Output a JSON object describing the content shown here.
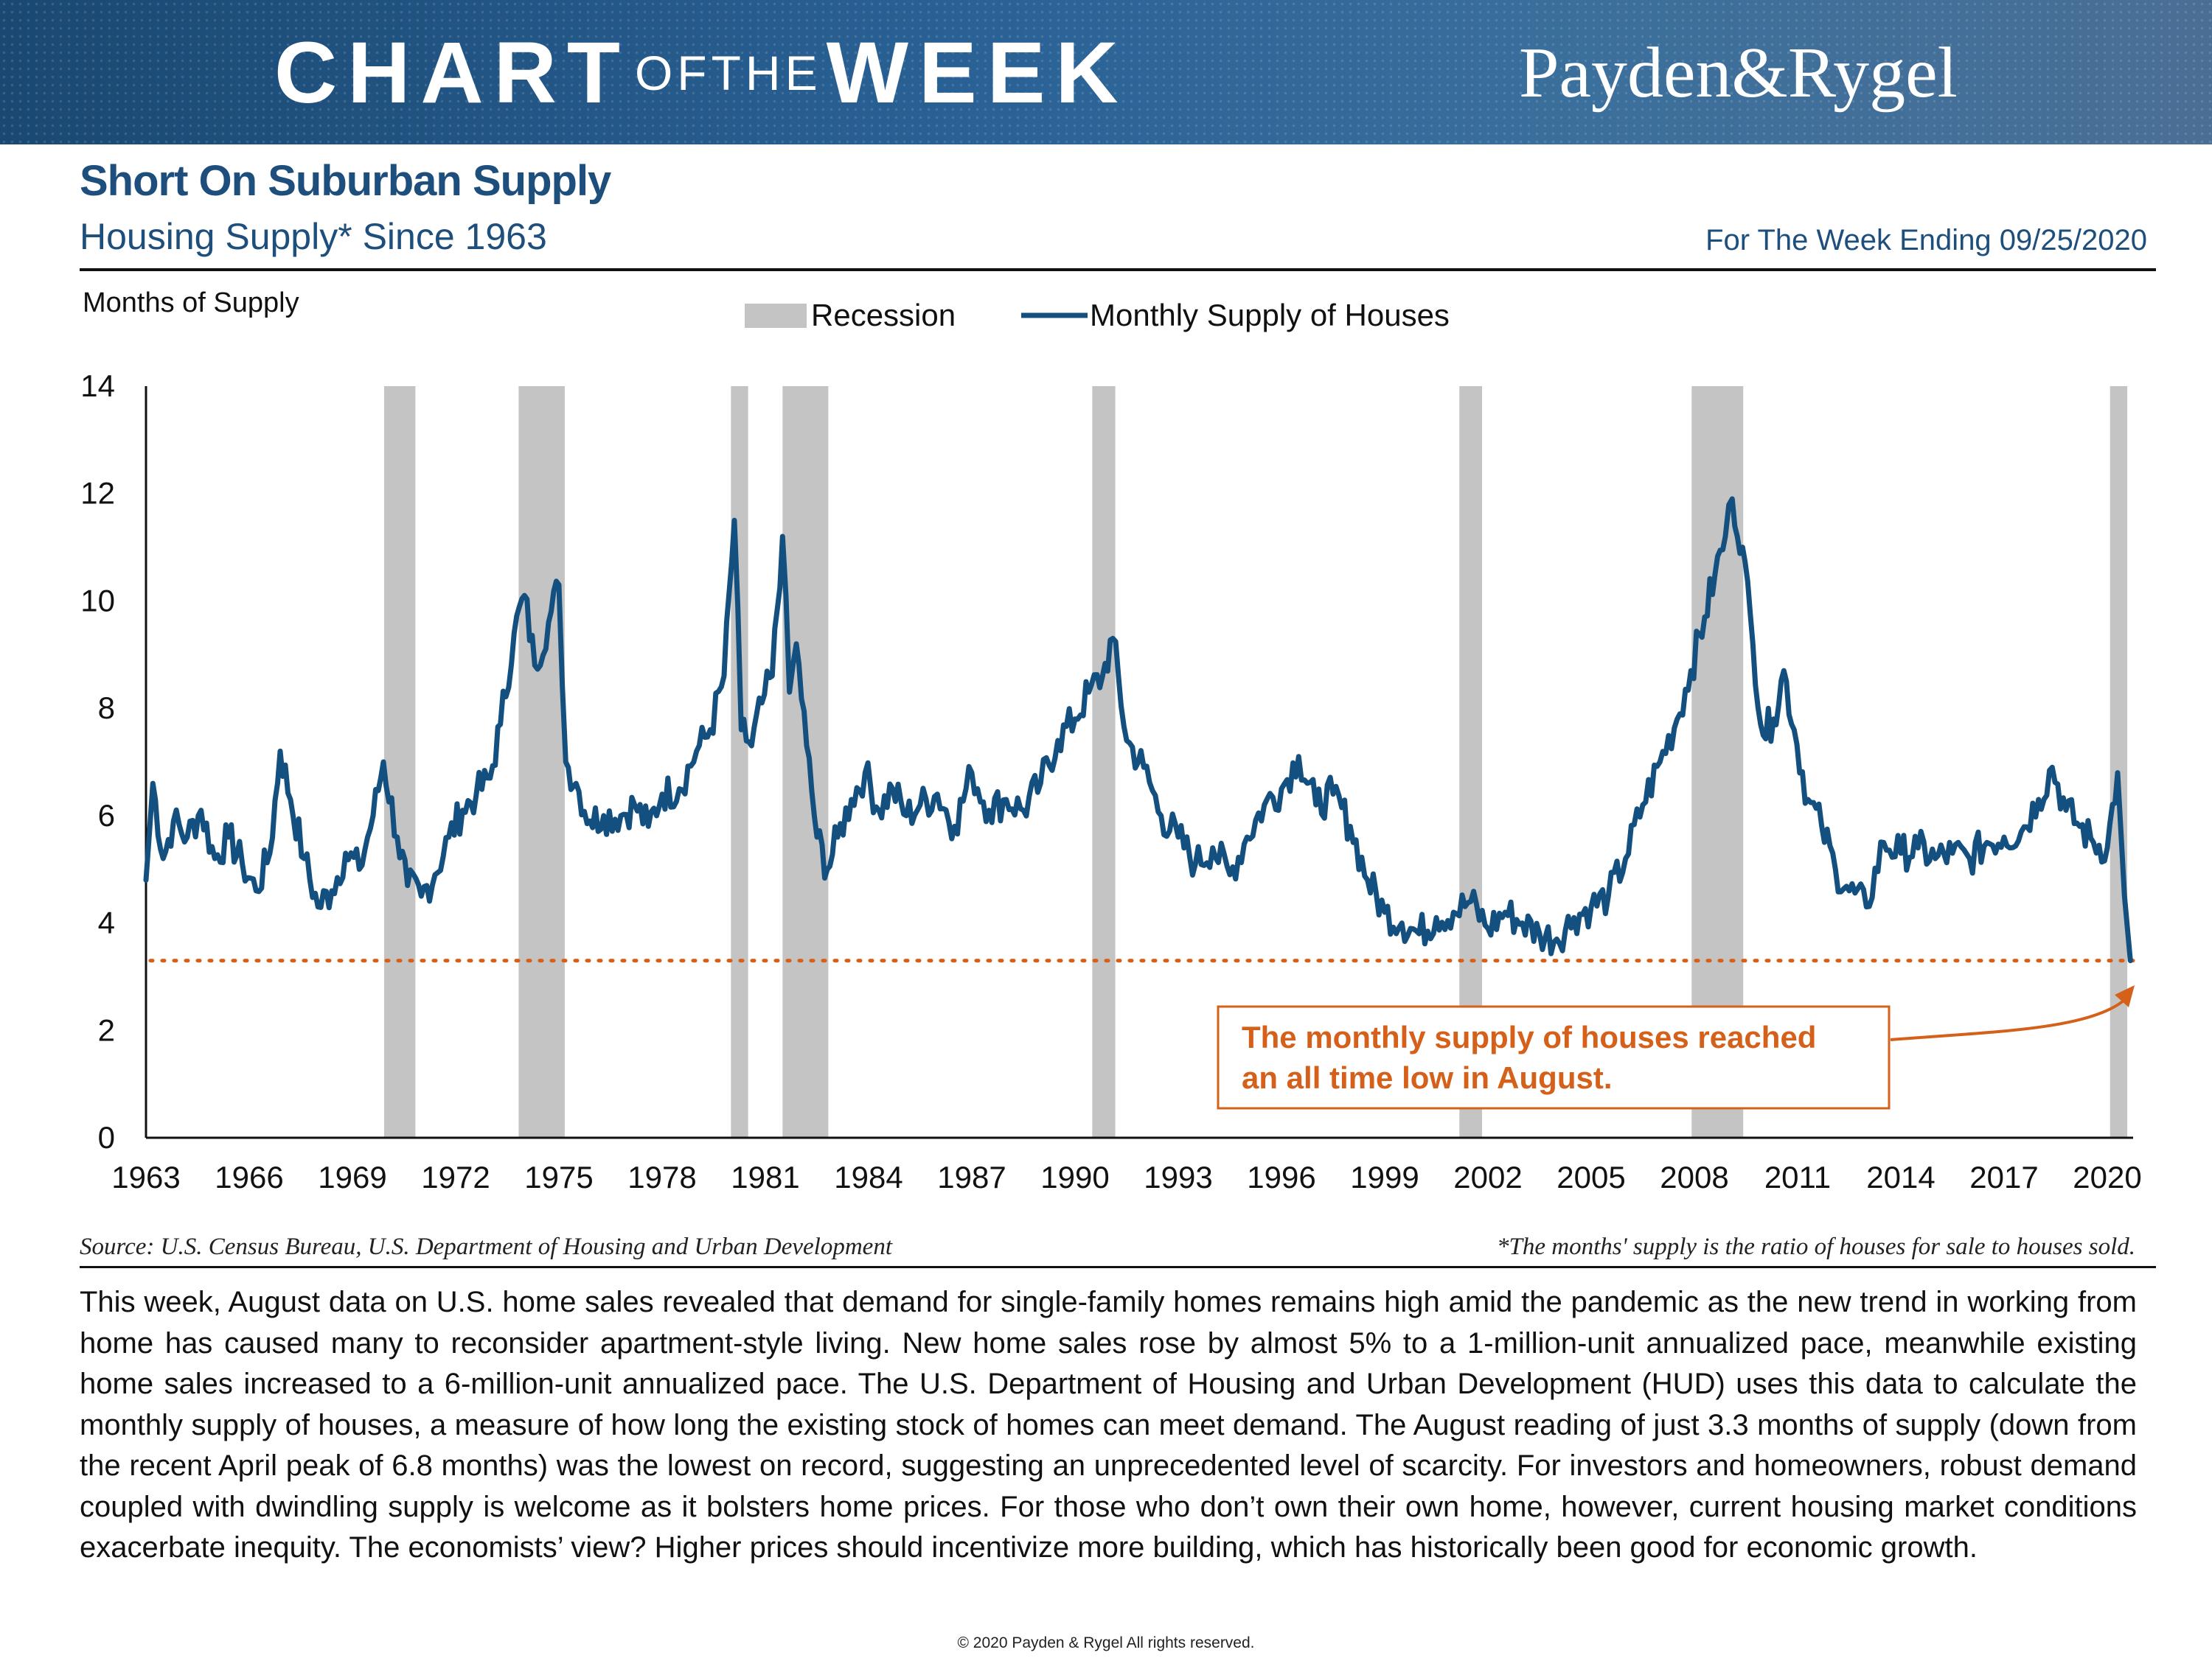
{
  "banner": {
    "brand_chart": "CHART",
    "brand_ofthe": "OFTHE",
    "brand_week": "WEEK",
    "logo": "Payden&Rygel"
  },
  "header": {
    "title": "Short On Suburban Supply",
    "subtitle": "Housing Supply* Since 1963",
    "week_ending": "For The Week Ending 09/25/2020"
  },
  "colors": {
    "series": "#14507f",
    "recession": "#c4c4c4",
    "annotation": "#d4601a",
    "brand": "#1e4f7c"
  },
  "chart_data": {
    "type": "line",
    "title": "Short On Suburban Supply",
    "subtitle": "Housing Supply* Since 1963",
    "ylabel": "Months of Supply",
    "xlabel": "",
    "ylim": [
      0,
      14
    ],
    "yticks": [
      0,
      2,
      4,
      6,
      8,
      10,
      12,
      14
    ],
    "xlim": [
      1963,
      2020.75
    ],
    "xticks": [
      "1963",
      "1966",
      "1969",
      "1972",
      "1975",
      "1978",
      "1981",
      "1984",
      "1987",
      "1990",
      "1993",
      "1996",
      "1999",
      "2002",
      "2005",
      "2008",
      "2011",
      "2014",
      "2017",
      "2020"
    ],
    "legend": [
      "Recession",
      "Monthly Supply of Houses"
    ],
    "legend_position": "top-center",
    "recessions": [
      {
        "start": 1969.92,
        "end": 1970.83
      },
      {
        "start": 1973.83,
        "end": 1975.17
      },
      {
        "start": 1980.0,
        "end": 1980.5
      },
      {
        "start": 1981.5,
        "end": 1982.83
      },
      {
        "start": 1990.5,
        "end": 1991.17
      },
      {
        "start": 2001.17,
        "end": 2001.83
      },
      {
        "start": 2007.92,
        "end": 2009.42
      },
      {
        "start": 2020.08,
        "end": 2020.58
      }
    ],
    "series": [
      {
        "name": "Monthly Supply of Houses",
        "x": [
          1963.0,
          1963.2,
          1963.5,
          1963.8,
          1964.2,
          1964.6,
          1965.0,
          1965.4,
          1965.8,
          1966.2,
          1966.6,
          1966.9,
          1967.2,
          1967.6,
          1968.0,
          1968.4,
          1968.8,
          1969.2,
          1969.6,
          1969.9,
          1970.3,
          1970.6,
          1971.0,
          1971.4,
          1971.8,
          1972.2,
          1972.6,
          1973.0,
          1973.3,
          1973.7,
          1974.0,
          1974.3,
          1974.7,
          1975.0,
          1975.2,
          1975.5,
          1975.9,
          1976.3,
          1976.8,
          1977.2,
          1977.6,
          1978.0,
          1978.5,
          1979.0,
          1979.4,
          1979.8,
          1980.1,
          1980.3,
          1980.6,
          1980.9,
          1981.2,
          1981.5,
          1981.7,
          1981.9,
          1982.2,
          1982.5,
          1982.8,
          1983.1,
          1983.5,
          1983.9,
          1984.3,
          1984.7,
          1985.1,
          1985.5,
          1986.0,
          1986.5,
          1987.0,
          1987.5,
          1988.0,
          1988.5,
          1989.0,
          1989.5,
          1990.0,
          1990.4,
          1990.8,
          1991.1,
          1991.5,
          1992.0,
          1992.5,
          1993.0,
          1993.5,
          1994.0,
          1994.5,
          1995.0,
          1995.5,
          1996.0,
          1996.5,
          1997.0,
          1997.5,
          1998.0,
          1998.5,
          1999.0,
          1999.5,
          2000.0,
          2000.5,
          2001.0,
          2001.5,
          2002.0,
          2002.5,
          2003.0,
          2003.5,
          2004.0,
          2004.5,
          2005.0,
          2005.5,
          2006.0,
          2006.5,
          2007.0,
          2007.5,
          2007.9,
          2008.3,
          2008.6,
          2008.9,
          2009.1,
          2009.4,
          2009.7,
          2010.0,
          2010.3,
          2010.6,
          2010.9,
          2011.3,
          2011.7,
          2012.1,
          2012.5,
          2013.0,
          2013.5,
          2014.0,
          2014.5,
          2015.0,
          2015.5,
          2016.0,
          2016.5,
          2017.0,
          2017.5,
          2018.0,
          2018.4,
          2018.8,
          2019.2,
          2019.6,
          2020.0,
          2020.3,
          2020.5,
          2020.67
        ],
        "values": [
          4.8,
          6.6,
          5.2,
          5.9,
          5.6,
          6.1,
          5.2,
          5.6,
          5.1,
          4.6,
          5.3,
          7.2,
          6.3,
          5.2,
          4.3,
          4.6,
          5.3,
          5.0,
          6.0,
          7.0,
          5.6,
          4.7,
          4.5,
          4.9,
          5.6,
          6.1,
          6.4,
          6.7,
          7.7,
          9.4,
          10.1,
          8.8,
          9.6,
          10.3,
          7.0,
          6.6,
          5.9,
          6.0,
          6.0,
          6.2,
          5.8,
          6.4,
          6.5,
          7.2,
          7.6,
          8.6,
          11.5,
          7.6,
          7.3,
          8.1,
          8.6,
          11.2,
          8.3,
          9.2,
          7.3,
          5.6,
          5.0,
          5.6,
          6.3,
          6.8,
          6.1,
          6.5,
          6.0,
          6.2,
          6.4,
          5.8,
          6.8,
          6.1,
          6.3,
          6.1,
          6.6,
          7.4,
          7.8,
          8.3,
          8.6,
          9.3,
          7.4,
          6.9,
          6.0,
          5.6,
          5.1,
          5.4,
          4.9,
          5.6,
          6.2,
          6.5,
          7.1,
          6.2,
          6.4,
          5.8,
          4.8,
          4.2,
          4.0,
          3.8,
          4.1,
          4.2,
          4.4,
          3.9,
          4.2,
          4.0,
          3.8,
          3.7,
          4.1,
          4.3,
          4.5,
          5.2,
          6.2,
          7.0,
          7.8,
          8.7,
          9.7,
          10.5,
          11.2,
          11.9,
          11.0,
          9.2,
          7.5,
          7.8,
          8.7,
          7.6,
          6.3,
          5.8,
          5.0,
          4.6,
          4.3,
          5.5,
          5.3,
          5.4,
          5.2,
          5.3,
          5.2,
          5.5,
          5.6,
          5.7,
          6.3,
          6.9,
          6.1,
          5.8,
          5.5,
          5.4,
          6.8,
          4.5,
          3.3
        ]
      }
    ],
    "reference_line": {
      "value": 3.3,
      "style": "dotted"
    },
    "annotation": "The monthly supply of houses reached an all time low in August."
  },
  "chart_text": {
    "y_axis_title": "Months of Supply",
    "legend_recession": "Recession",
    "legend_series": "Monthly Supply of Houses",
    "annotation_line1": "The monthly supply of houses reached",
    "annotation_line2": "an all time low in August."
  },
  "footer": {
    "source": "Source: U.S. Census Bureau, U.S. Department of Housing and Urban Development",
    "footnote": "*The months' supply is the ratio of houses for sale to houses sold.",
    "body": "This week, August data on U.S. home sales revealed that demand for single-family homes remains high amid the pandemic as the new trend in working from home has caused many to reconsider apartment-style living. New home sales rose by almost 5% to a 1-million-unit annualized pace, meanwhile existing home sales increased to a 6-million-unit annualized pace. The U.S. Department of Housing and Urban Development (HUD) uses this data to calculate the monthly supply of houses, a measure of how long the existing stock of homes can meet demand. The August reading of just 3.3 months of supply (down from the recent April peak of 6.8 months) was the lowest on record, suggesting an unprecedented level of scarcity. For investors and homeowners, robust demand coupled with dwindling supply is welcome as it bolsters home prices. For those who don’t own their own home, however, current housing market conditions exacerbate inequity. The economists’ view? Higher prices should incentivize more building, which has historically been good for economic growth.",
    "copyright": "© 2020 Payden  & Rygel  All rights reserved."
  }
}
